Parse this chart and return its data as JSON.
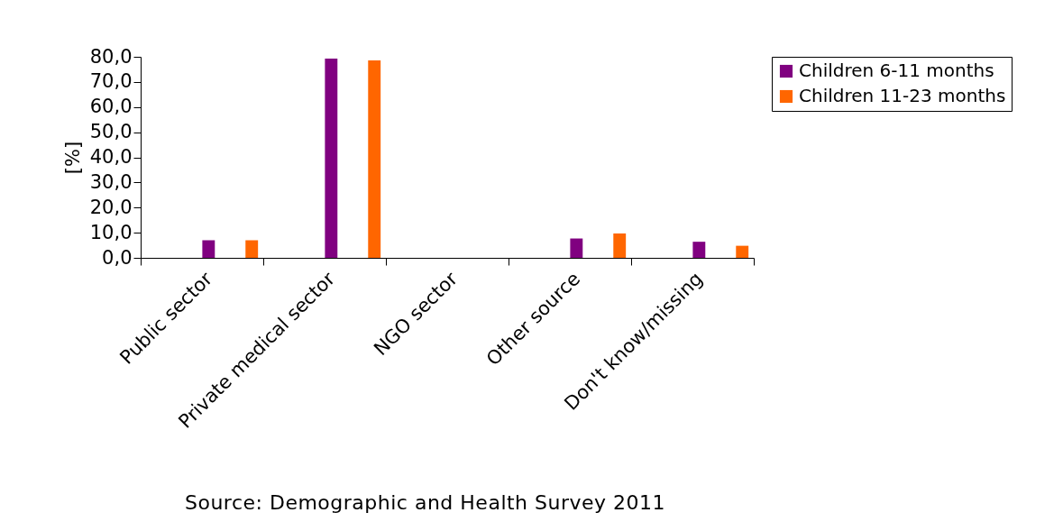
{
  "chart_data": {
    "type": "bar",
    "ylabel": "[%]",
    "categories": [
      "Public sector",
      "Private medical sector",
      "NGO sector",
      "Other source",
      "Don't know/missing"
    ],
    "series": [
      {
        "name": "Children 6-11 months",
        "color": "#800080",
        "values": [
          7.0,
          79.3,
          0,
          7.7,
          6.4
        ]
      },
      {
        "name": "Children 11-23 months",
        "color": "#ff6600",
        "values": [
          7.0,
          78.6,
          0,
          9.7,
          4.8
        ]
      }
    ],
    "ylim": [
      0,
      80
    ],
    "yticks": [
      {
        "value": 0,
        "label": "0,0"
      },
      {
        "value": 10,
        "label": "10,0"
      },
      {
        "value": 20,
        "label": "20,0"
      },
      {
        "value": 30,
        "label": "30,0"
      },
      {
        "value": 40,
        "label": "40,0"
      },
      {
        "value": 50,
        "label": "50,0"
      },
      {
        "value": 60,
        "label": "60,0"
      },
      {
        "value": 70,
        "label": "70,0"
      },
      {
        "value": 80,
        "label": "80,0"
      }
    ],
    "grid": false,
    "legend": "right",
    "annotations": [
      "Source: Demographic and Health Survey 2011"
    ]
  }
}
